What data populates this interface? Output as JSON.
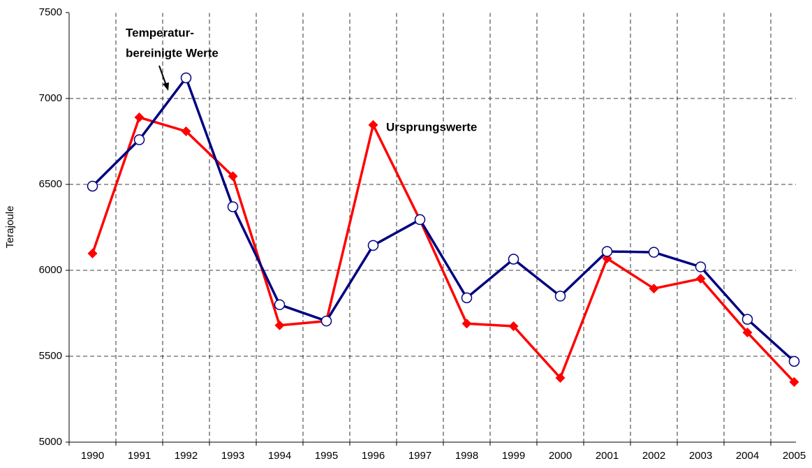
{
  "chart_data": {
    "type": "line",
    "y_label": "Terajoule",
    "categories": [
      "1990",
      "1991",
      "1992",
      "1993",
      "1994",
      "1995",
      "1996",
      "1997",
      "1998",
      "1999",
      "2000",
      "2001",
      "2002",
      "2003",
      "2004",
      "2005"
    ],
    "series": [
      {
        "color": "#ff0000",
        "marker": "diamond",
        "values": [
          6098,
          6890,
          6809,
          6548,
          5680,
          5705,
          6846,
          6293,
          5690,
          5675,
          5374,
          6069,
          5894,
          5951,
          5638,
          5350
        ]
      },
      {
        "color": "#000080",
        "marker": "circle",
        "values": [
          6490,
          6760,
          7120,
          6370,
          5800,
          5705,
          6145,
          6295,
          5840,
          6065,
          5850,
          6110,
          6105,
          6020,
          5715,
          5470
        ]
      }
    ],
    "annotations": [
      "Temperatur-",
      "bereinigte Werte",
      "Ursprungswerte"
    ],
    "ylim": [
      5000,
      7500
    ],
    "yticks": [
      5000,
      5500,
      6000,
      6500,
      7000,
      7500
    ],
    "grid": true
  }
}
